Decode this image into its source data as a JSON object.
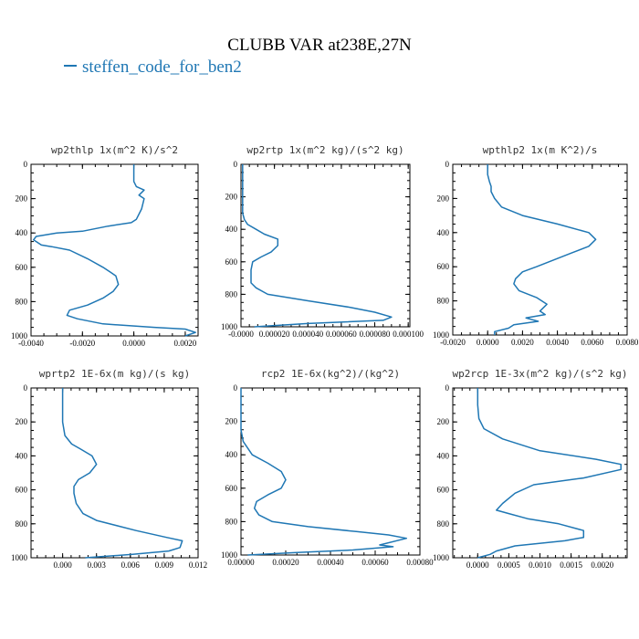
{
  "header": {
    "title": "CLUBB VAR at238E,27N",
    "legend": "steffen_code_for_ben2"
  },
  "colors": {
    "line": "#1f77b4",
    "axis": "#000000",
    "background": "#ffffff"
  },
  "chart_data": [
    {
      "type": "line",
      "title": "wp2thlp  1x(m^2 K)/s^2",
      "xlim": [
        -0.004,
        0.0025
      ],
      "ylim": [
        1000,
        0
      ],
      "xticks": [
        -0.004,
        -0.002,
        0.0,
        0.002
      ],
      "xticklabels": [
        "-0.0040",
        "-0.0020",
        "0.0000",
        "0.0020"
      ],
      "yticks": [
        0,
        200,
        400,
        600,
        800,
        1000
      ],
      "yticklabels": [
        "0",
        "200",
        "400",
        "600",
        "800",
        "1000"
      ],
      "series": [
        {
          "x": [
            0.0,
            0.0,
            0.0001,
            0.0004,
            0.0002,
            0.0004,
            0.0003,
            0.0001,
            -0.0001,
            -0.001,
            -0.002,
            -0.003,
            -0.0038,
            -0.0039,
            -0.0036,
            -0.0032,
            -0.0025,
            -0.0018,
            -0.0012,
            -0.0009,
            -0.0007,
            -0.0006,
            -0.0008,
            -0.0012,
            -0.0018,
            -0.0025,
            -0.0026,
            -0.0022,
            -0.0012,
            0.0008,
            0.002,
            0.0024,
            0.002
          ],
          "y": [
            0,
            100,
            130,
            150,
            180,
            200,
            260,
            320,
            340,
            360,
            390,
            400,
            420,
            440,
            470,
            480,
            500,
            550,
            600,
            630,
            650,
            700,
            740,
            780,
            820,
            850,
            880,
            900,
            930,
            950,
            960,
            980,
            1000
          ]
        }
      ]
    },
    {
      "type": "line",
      "title": "wp2rtp  1x(m^2 kg)/(s^2 kg)",
      "xlim": [
        0.0,
        0.000101
      ],
      "ylim": [
        1000,
        0
      ],
      "xticks": [
        0.0,
        2e-05,
        4e-05,
        6e-05,
        8e-05,
        0.0001
      ],
      "xticklabels": [
        "-0.0000",
        "0.000020",
        "0.000040",
        "0.000060",
        "0.000080",
        "0.000100"
      ],
      "yticks": [
        0,
        200,
        400,
        600,
        800,
        1000
      ],
      "yticklabels": [
        "0",
        "200",
        "400",
        "600",
        "800",
        "1000"
      ],
      "series": [
        {
          "x": [
            1e-06,
            1e-06,
            1e-06,
            2e-06,
            4e-06,
            9e-06,
            1.4e-05,
            2.2e-05,
            2.2e-05,
            1.8e-05,
            1.2e-05,
            7e-06,
            6e-06,
            6e-06,
            6e-06,
            9e-06,
            1.6e-05,
            4e-05,
            6.5e-05,
            8e-05,
            9e-05,
            8.5e-05,
            4e-05,
            8e-06
          ],
          "y": [
            0,
            150,
            300,
            340,
            370,
            400,
            430,
            460,
            500,
            540,
            570,
            600,
            650,
            700,
            730,
            760,
            800,
            840,
            880,
            910,
            940,
            960,
            980,
            1000
          ]
        }
      ]
    },
    {
      "type": "line",
      "title": "wpthlp2  1x(m K^2)/s",
      "xlim": [
        -0.002,
        0.008
      ],
      "ylim": [
        1000,
        0
      ],
      "xticks": [
        -0.002,
        0.0,
        0.002,
        0.004,
        0.006,
        0.008
      ],
      "xticklabels": [
        "-0.0020",
        "0.0000",
        "0.0020",
        "0.0040",
        "0.0060",
        "0.0080"
      ],
      "yticks": [
        0,
        200,
        400,
        600,
        800,
        1000
      ],
      "yticklabels": [
        "0",
        "200",
        "400",
        "600",
        "800",
        "1000"
      ],
      "series": [
        {
          "x": [
            0.0,
            0.0,
            0.0001,
            0.0002,
            0.0002,
            0.0004,
            0.0008,
            0.002,
            0.004,
            0.0058,
            0.0062,
            0.0058,
            0.0048,
            0.0038,
            0.0028,
            0.002,
            0.0016,
            0.0015,
            0.0018,
            0.0028,
            0.0034,
            0.003,
            0.0033,
            0.0022,
            0.0029,
            0.0015,
            0.0012,
            0.0004,
            0.0004
          ],
          "y": [
            0,
            60,
            100,
            130,
            160,
            200,
            250,
            300,
            350,
            400,
            440,
            480,
            520,
            560,
            600,
            630,
            670,
            700,
            740,
            780,
            820,
            860,
            880,
            900,
            920,
            940,
            960,
            980,
            1000
          ]
        }
      ]
    },
    {
      "type": "line",
      "title": "wprtp2  1E-6x(m kg)/(s kg)",
      "xlim": [
        -0.0028,
        0.012
      ],
      "ylim": [
        1000,
        0
      ],
      "xticks": [
        0.0,
        0.003,
        0.006,
        0.009,
        0.012
      ],
      "xticklabels": [
        "0.000",
        "0.003",
        "0.006",
        "0.009",
        "0.012"
      ],
      "yticks": [
        0,
        200,
        400,
        600,
        800,
        1000
      ],
      "yticklabels": [
        "0",
        "200",
        "400",
        "600",
        "800",
        "1000"
      ],
      "series": [
        {
          "x": [
            0.0,
            0.0,
            0.0002,
            0.0008,
            0.0016,
            0.0026,
            0.003,
            0.0024,
            0.0014,
            0.001,
            0.001,
            0.0012,
            0.0018,
            0.003,
            0.0065,
            0.0092,
            0.0106,
            0.0104,
            0.0094,
            0.0062,
            0.002
          ],
          "y": [
            0,
            200,
            280,
            330,
            360,
            400,
            450,
            500,
            540,
            580,
            620,
            680,
            740,
            780,
            840,
            880,
            900,
            940,
            960,
            980,
            1000
          ]
        }
      ]
    },
    {
      "type": "line",
      "title": "rcp2  1E-6x(kg^2)/(kg^2)",
      "xlim": [
        0.0,
        0.0008
      ],
      "ylim": [
        1000,
        0
      ],
      "xticks": [
        0.0,
        0.0002,
        0.0004,
        0.0006,
        0.0008
      ],
      "xticklabels": [
        "0.00000",
        "0.00020",
        "0.00040",
        "0.00060",
        "0.00080"
      ],
      "yticks": [
        0,
        200,
        400,
        600,
        800,
        1000
      ],
      "yticklabels": [
        "0",
        "200",
        "400",
        "600",
        "800",
        "1000"
      ],
      "series": [
        {
          "x": [
            0.0,
            0.0,
            1e-05,
            5e-05,
            0.00012,
            0.00018,
            0.0002,
            0.00018,
            0.00012,
            7e-05,
            6e-05,
            8e-05,
            0.00014,
            0.0003,
            0.00052,
            0.00066,
            0.00074,
            0.00062,
            0.00068,
            0.0005,
            0.00025,
            3e-05
          ],
          "y": [
            0,
            250,
            320,
            400,
            450,
            500,
            550,
            600,
            640,
            680,
            720,
            760,
            800,
            830,
            860,
            880,
            900,
            940,
            950,
            970,
            985,
            1000
          ]
        }
      ]
    },
    {
      "type": "line",
      "title": "wp2rcp  1E-3x(m^2 kg)/(s^2 kg)",
      "xlim": [
        -0.0004,
        0.0024
      ],
      "ylim": [
        1000,
        0
      ],
      "xticks": [
        0.0,
        0.0005,
        0.001,
        0.0015,
        0.002
      ],
      "xticklabels": [
        "0.0000",
        "0.0005",
        "0.0010",
        "0.0015",
        "0.0020"
      ],
      "yticks": [
        0,
        200,
        400,
        600,
        800,
        1000
      ],
      "yticklabels": [
        "0",
        "200",
        "400",
        "600",
        "800",
        "1000"
      ],
      "series": [
        {
          "x": [
            0.0,
            0.0,
            2e-05,
            0.0001,
            0.0004,
            0.001,
            0.0019,
            0.0023,
            0.0023,
            0.0017,
            0.0009,
            0.0006,
            0.0004,
            0.0003,
            0.0005,
            0.0008,
            0.0013,
            0.0017,
            0.0017,
            0.0014,
            0.0006,
            0.0003,
            0.0002,
            0.0
          ],
          "y": [
            0,
            100,
            180,
            240,
            300,
            370,
            420,
            450,
            480,
            530,
            570,
            620,
            680,
            720,
            740,
            770,
            800,
            840,
            880,
            900,
            930,
            960,
            980,
            1000
          ]
        }
      ]
    }
  ]
}
